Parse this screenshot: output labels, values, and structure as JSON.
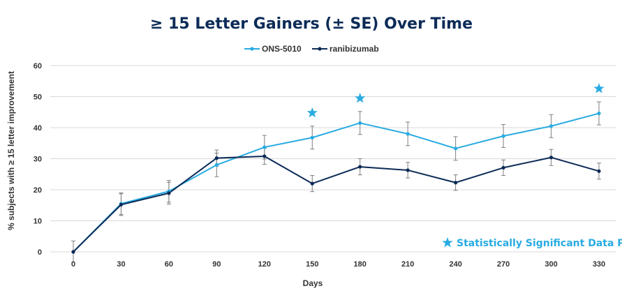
{
  "colors": {
    "title": "#0c2b57",
    "ons": "#29abe2",
    "rani": "#0c2b57",
    "grid": "#d9d9d9",
    "errorbar": "#7f7f7f",
    "star": "#29abe2"
  },
  "chart_data": {
    "type": "line",
    "title": "≥ 15 Letter Gainers (± SE) Over Time",
    "xlabel": "Days",
    "ylabel": "% subjects with ≥ 15 letter improvement",
    "x": [
      0,
      30,
      60,
      90,
      120,
      150,
      180,
      210,
      240,
      270,
      300,
      330
    ],
    "x_tick_labels": [
      "0",
      "30",
      "60",
      "90",
      "120",
      "150",
      "180",
      "210",
      "240",
      "270",
      "300",
      "330"
    ],
    "ylim": [
      0,
      60
    ],
    "y_ticks": [
      0,
      10,
      20,
      30,
      40,
      50,
      60
    ],
    "y_tick_labels": [
      "0",
      "10",
      "20",
      "30",
      "40",
      "50",
      "60"
    ],
    "grid": true,
    "legend_position": "top-center",
    "series": [
      {
        "name": "ONS-5010",
        "color_key": "ons",
        "values": [
          0,
          15.5,
          19.5,
          28,
          33.7,
          36.8,
          41.5,
          38,
          33.3,
          37.3,
          40.5,
          44.6
        ],
        "se": [
          0,
          3.5,
          3.5,
          3.8,
          3.8,
          3.7,
          3.7,
          3.8,
          3.8,
          3.7,
          3.7,
          3.7
        ]
      },
      {
        "name": "ranibizumab",
        "color_key": "rani",
        "values": [
          0,
          15.2,
          18.9,
          30.2,
          30.8,
          22,
          27.4,
          26.3,
          22.3,
          27.1,
          30.4,
          26
        ],
        "se": [
          3.5,
          3.5,
          3.5,
          2.6,
          2.6,
          2.6,
          2.6,
          2.5,
          2.5,
          2.5,
          2.6,
          2.6
        ]
      }
    ],
    "significant_x": [
      150,
      180,
      330
    ],
    "annotation": "Statistically Significant Data Point"
  }
}
